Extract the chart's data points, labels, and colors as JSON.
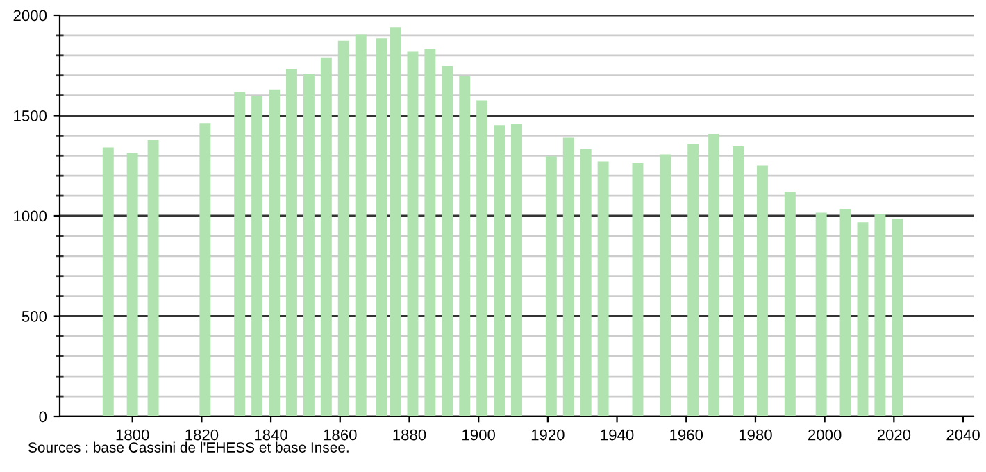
{
  "chart_data": {
    "type": "bar",
    "x": [
      1793,
      1800,
      1806,
      1821,
      1831,
      1836,
      1841,
      1846,
      1851,
      1856,
      1861,
      1866,
      1872,
      1876,
      1881,
      1886,
      1891,
      1896,
      1901,
      1906,
      1911,
      1921,
      1926,
      1931,
      1936,
      1946,
      1954,
      1962,
      1968,
      1975,
      1982,
      1990,
      1999,
      2006,
      2011,
      2016,
      2021
    ],
    "series": [
      {
        "color": "#b0e3b0",
        "values": [
          1341,
          1313,
          1378,
          1463,
          1617,
          1599,
          1631,
          1733,
          1707,
          1790,
          1873,
          1905,
          1885,
          1940,
          1818,
          1832,
          1747,
          1696,
          1576,
          1452,
          1459,
          1297,
          1389,
          1332,
          1272,
          1263,
          1306,
          1359,
          1408,
          1346,
          1251,
          1120,
          1016,
          1035,
          968,
          1007,
          986
        ]
      }
    ],
    "xlim": [
      1779,
      2043
    ],
    "xticks": [
      1800,
      1820,
      1840,
      1860,
      1880,
      1900,
      1920,
      1940,
      1960,
      1980,
      2000,
      2020,
      2040
    ],
    "ylim": [
      0,
      2000
    ],
    "yticks": [
      0,
      500,
      1000,
      1500,
      2000
    ],
    "grid": "y",
    "annotations": [
      "Sources : base Cassini de l'EHESS et base Insee."
    ]
  }
}
